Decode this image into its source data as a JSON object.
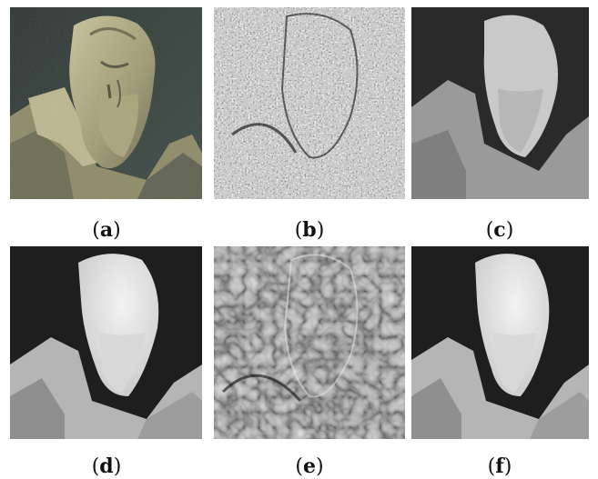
{
  "figure": {
    "panels": [
      {
        "label": "a",
        "content": "photo-statue"
      },
      {
        "label": "b",
        "content": "noisy-disparity"
      },
      {
        "label": "c",
        "content": "sparse-depth"
      },
      {
        "label": "d",
        "content": "smooth-depth"
      },
      {
        "label": "e",
        "content": "texture-residual"
      },
      {
        "label": "f",
        "content": "smooth-depth"
      }
    ]
  }
}
